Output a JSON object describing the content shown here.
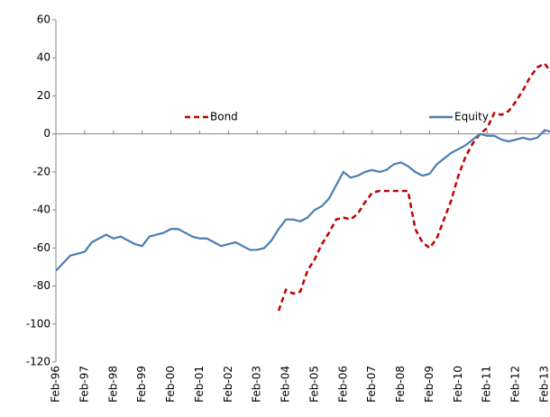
{
  "chart_data": {
    "type": "line",
    "categories": [
      "Feb-96",
      null,
      null,
      null,
      "Feb-97",
      null,
      null,
      null,
      "Feb-98",
      null,
      null,
      null,
      "Feb-99",
      null,
      null,
      null,
      "Feb-00",
      null,
      null,
      null,
      "Feb-01",
      null,
      null,
      null,
      "Feb-02",
      null,
      null,
      null,
      "Feb-03",
      null,
      null,
      null,
      "Feb-04",
      null,
      null,
      null,
      "Feb-05",
      null,
      null,
      null,
      "Feb-06",
      null,
      null,
      null,
      "Feb-07",
      null,
      null,
      null,
      "Feb-08",
      null,
      null,
      null,
      "Feb-09",
      null,
      null,
      null,
      "Feb-10",
      null,
      null,
      null,
      "Feb-11",
      null,
      null,
      null,
      "Feb-12",
      null,
      null,
      null,
      "Feb-13",
      null
    ],
    "series": [
      {
        "name": "Bond",
        "color": "#c00000",
        "dash": true,
        "values": [
          null,
          null,
          null,
          null,
          null,
          null,
          null,
          null,
          null,
          null,
          null,
          null,
          null,
          null,
          null,
          null,
          null,
          null,
          null,
          null,
          null,
          null,
          null,
          null,
          null,
          null,
          null,
          null,
          null,
          null,
          null,
          -93,
          -82,
          -84,
          -83,
          -72,
          -66,
          -58,
          -52,
          -45,
          -44,
          -45,
          -42,
          -36,
          -31,
          -30,
          -30,
          -30,
          -30,
          -30,
          -50,
          -57,
          -60,
          -55,
          -45,
          -35,
          -22,
          -12,
          -5,
          0,
          3,
          11,
          10,
          12,
          17,
          23,
          30,
          35,
          37,
          32
        ]
      },
      {
        "name": "Equity",
        "color": "#4a7eb4",
        "dash": false,
        "values": [
          -72,
          -68,
          -64,
          -63,
          -62,
          -57,
          -55,
          -53,
          -55,
          -54,
          -56,
          -58,
          -59,
          -54,
          -53,
          -52,
          -50,
          -50,
          -52,
          -54,
          -55,
          -55,
          -57,
          -59,
          -58,
          -57,
          -59,
          -61,
          -61,
          -60,
          -56,
          -50,
          -45,
          -45,
          -46,
          -44,
          -40,
          -38,
          -34,
          -27,
          -20,
          -23,
          -22,
          -20,
          -19,
          -20,
          -19,
          -16,
          -15,
          -17,
          -20,
          -22,
          -21,
          -16,
          -13,
          -10,
          -8,
          -6,
          -3,
          0,
          -1,
          -1,
          -3,
          -4,
          -3,
          -2,
          -3,
          -2,
          2,
          1
        ]
      }
    ],
    "ylim": [
      -120,
      60
    ],
    "yticks": [
      -120,
      -100,
      -80,
      -60,
      -40,
      -20,
      0,
      20,
      40,
      60
    ],
    "grid": false,
    "legend": "top-center"
  }
}
